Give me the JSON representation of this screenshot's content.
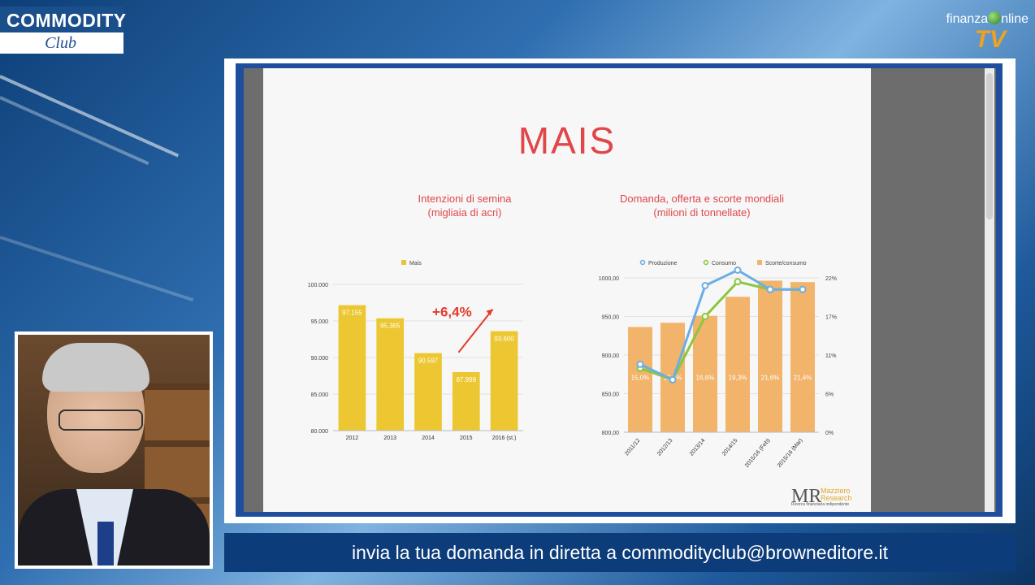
{
  "branding": {
    "show_top": "COMMODITY",
    "show_bottom": "Club",
    "channel_left": "finanza",
    "channel_right": "nline",
    "channel_tv": "TV"
  },
  "slide": {
    "title": "MAIS"
  },
  "banner": {
    "text": "invia la tua domanda in diretta a commodityclub@browneditore.it"
  },
  "watermark": {
    "mr": "MR",
    "name1": "Mazziero",
    "name2": "Research",
    "tagline": "Ricerca finanziaria indipendente"
  },
  "chart_data": [
    {
      "type": "bar",
      "title": "Intenzioni di semina\n(migliaia di acri)",
      "categories": [
        "2012",
        "2013",
        "2014",
        "2015",
        "2016 (st.)"
      ],
      "series": [
        {
          "name": "Mais",
          "values": [
            97155,
            95365,
            90597,
            87999,
            93600
          ],
          "labels": [
            "97.155",
            "95.365",
            "90.597",
            "87.999",
            "93.600"
          ]
        }
      ],
      "ylim": [
        80000,
        100000
      ],
      "yticks": [
        "80.000",
        "85.000",
        "90.000",
        "95.000",
        "100.000"
      ],
      "annotation": "+6,4%",
      "legend": "top"
    },
    {
      "type": "bar+line",
      "title": "Domanda, offerta e scorte mondiali\n(milioni di tonnellate)",
      "categories": [
        "2011/12",
        "2012/13",
        "2013/14",
        "2014/15",
        "2015/16 (Feb)",
        "2015/16 (Mar)"
      ],
      "series": [
        {
          "name": "Produzione",
          "type": "line",
          "values": [
            888,
            868,
            990,
            1010,
            985,
            985
          ],
          "color": "#6aaee6"
        },
        {
          "name": "Consumo",
          "type": "line",
          "values": [
            883,
            868,
            950,
            995,
            985,
            985
          ],
          "color": "#8cc63f"
        },
        {
          "name": "Scorte/consumo",
          "type": "bar",
          "axis": "right",
          "values": [
            15.0,
            15.6,
            16.6,
            19.3,
            21.6,
            21.4
          ],
          "labels": [
            "15,0%",
            "15,6%",
            "16,6%",
            "19,3%",
            "21,6%",
            "21,4%"
          ],
          "color": "#f2b36b"
        }
      ],
      "ylim": [
        800,
        1000
      ],
      "yticks": [
        "800,00",
        "850,00",
        "900,00",
        "950,00",
        "1000,00"
      ],
      "y2ticks": [
        "0%",
        "6%",
        "11%",
        "17%",
        "22%"
      ],
      "legend": "top"
    }
  ]
}
